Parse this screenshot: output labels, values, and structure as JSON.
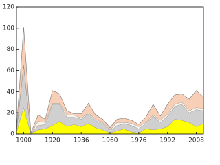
{
  "chart_data": {
    "type": "stacked_area",
    "categories": [
      null,
      "1900",
      null,
      null,
      null,
      "1920",
      null,
      null,
      null,
      "1936",
      null,
      null,
      null,
      "1960",
      null,
      null,
      null,
      "1976",
      null,
      null,
      null,
      "1992",
      null,
      null,
      null,
      "2008",
      null
    ],
    "series": [
      {
        "color": "#ffff00",
        "values": [
          2,
          25,
          0,
          4,
          5,
          8,
          12,
          7,
          9,
          7,
          10,
          6,
          4,
          1,
          3,
          5,
          2,
          1,
          5,
          4,
          5,
          7,
          14,
          13,
          11,
          7,
          10
        ]
      },
      {
        "color": "#d0d0d0",
        "values": [
          1,
          40,
          0,
          4,
          4,
          20,
          16,
          9,
          7,
          7,
          9,
          7,
          6,
          2,
          5,
          5,
          6,
          4,
          5,
          13,
          6,
          10,
          12,
          15,
          9,
          16,
          12
        ]
      },
      {
        "color": "#f6f2ee",
        "values": [
          1,
          1,
          0,
          4,
          2,
          1,
          1,
          2,
          2,
          1,
          1,
          1,
          1,
          1,
          3,
          1,
          2,
          2,
          1,
          1,
          2,
          2,
          2,
          2,
          2,
          2,
          2
        ]
      },
      {
        "color": "#f6cfb6",
        "values": [
          1,
          35,
          1,
          6,
          3,
          12,
          9,
          4,
          1,
          4,
          9,
          4,
          3,
          2,
          3,
          4,
          3,
          2,
          5,
          10,
          4,
          9,
          9,
          8,
          11,
          16,
          11
        ]
      }
    ],
    "ylim": [
      0,
      120
    ],
    "yticks": [
      0,
      20,
      40,
      60,
      80,
      100,
      120
    ]
  }
}
